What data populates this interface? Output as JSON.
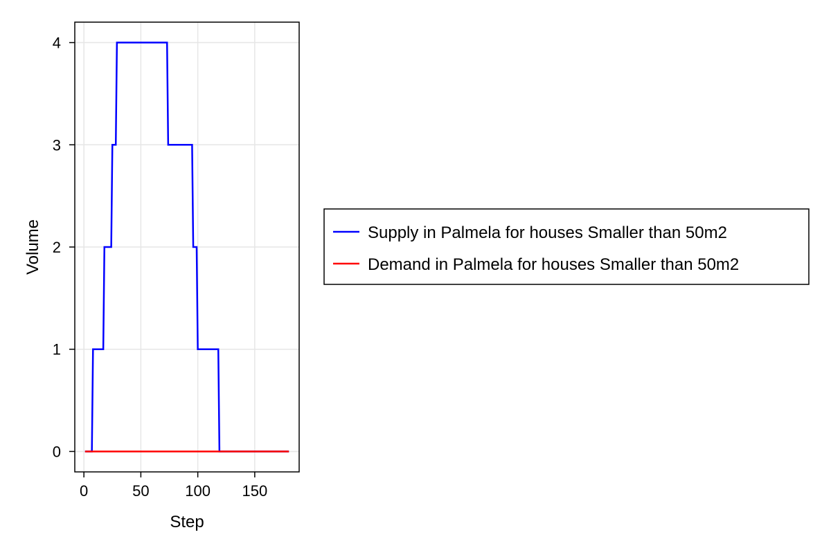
{
  "chart_data": {
    "type": "line",
    "xlabel": "Step",
    "ylabel": "Volume",
    "xlim": [
      -8,
      189
    ],
    "ylim": [
      -0.2,
      4.2
    ],
    "x_ticks": [
      0,
      50,
      100,
      150
    ],
    "y_ticks": [
      0,
      1,
      2,
      3,
      4
    ],
    "grid": true,
    "legend_position": "right",
    "series": [
      {
        "name": "Supply in Palmela for houses Smaller than 50m2",
        "color": "#0000ff",
        "x": [
          1,
          7,
          8,
          17,
          18,
          24,
          25,
          28,
          29,
          73,
          74,
          95,
          96,
          99,
          100,
          118,
          119,
          180
        ],
        "y": [
          0,
          0,
          1,
          1,
          2,
          2,
          3,
          3,
          4,
          4,
          3,
          3,
          2,
          2,
          1,
          1,
          0,
          0
        ]
      },
      {
        "name": "Demand in Palmela for houses Smaller than 50m2",
        "color": "#ff0000",
        "x": [
          1,
          180
        ],
        "y": [
          0,
          0
        ]
      }
    ]
  }
}
